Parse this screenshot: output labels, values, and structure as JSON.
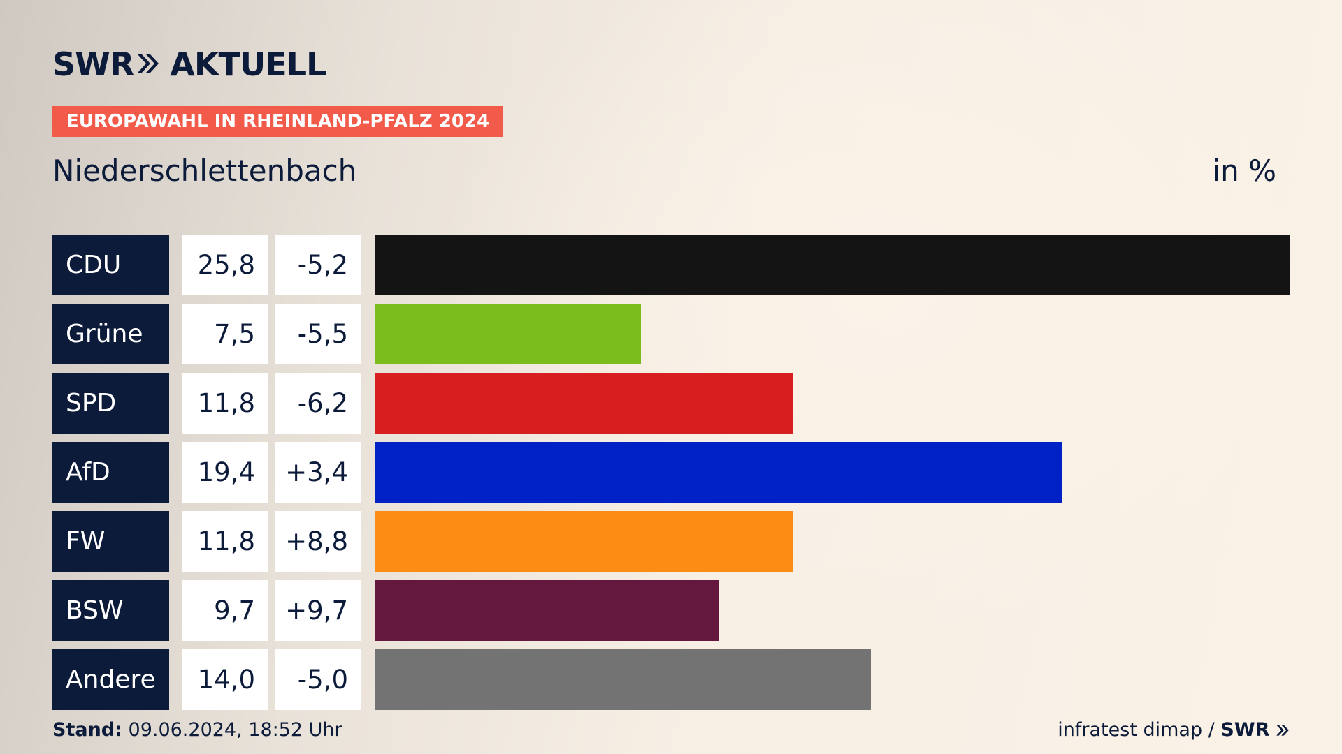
{
  "header": {
    "logo_text": "SWR",
    "logo_suffix": "AKTUELL",
    "badge": "EUROPAWAHL IN RHEINLAND-PFALZ 2024",
    "subtitle": "Niederschlettenbach",
    "unit": "in %"
  },
  "footer": {
    "stand_label": "Stand:",
    "stand_value": "09.06.2024, 18:52 Uhr",
    "source": "infratest dimap /",
    "source_brand": "SWR"
  },
  "colors": {
    "navy": "#0c1b3a",
    "badge": "#f25a4a"
  },
  "chart_data": {
    "type": "bar",
    "orientation": "horizontal",
    "categories": [
      "CDU",
      "Grüne",
      "SPD",
      "AfD",
      "FW",
      "BSW",
      "Andere"
    ],
    "values": [
      25.8,
      7.5,
      11.8,
      19.4,
      11.8,
      9.7,
      14.0
    ],
    "value_labels": [
      "25,8",
      "7,5",
      "11,8",
      "19,4",
      "11,8",
      "9,7",
      "14,0"
    ],
    "diff_labels": [
      "-5,2",
      "-5,5",
      "-6,2",
      "+3,4",
      "+8,8",
      "+9,7",
      "-5,0"
    ],
    "diffs": [
      -5.2,
      -5.5,
      -6.2,
      3.4,
      8.8,
      9.7,
      -5.0
    ],
    "bar_colors": [
      "#141414",
      "#7abd1d",
      "#d81f1f",
      "#0021c6",
      "#fc8c14",
      "#65183d",
      "#737373"
    ],
    "xlim": [
      0,
      25.8
    ],
    "grid": false
  }
}
